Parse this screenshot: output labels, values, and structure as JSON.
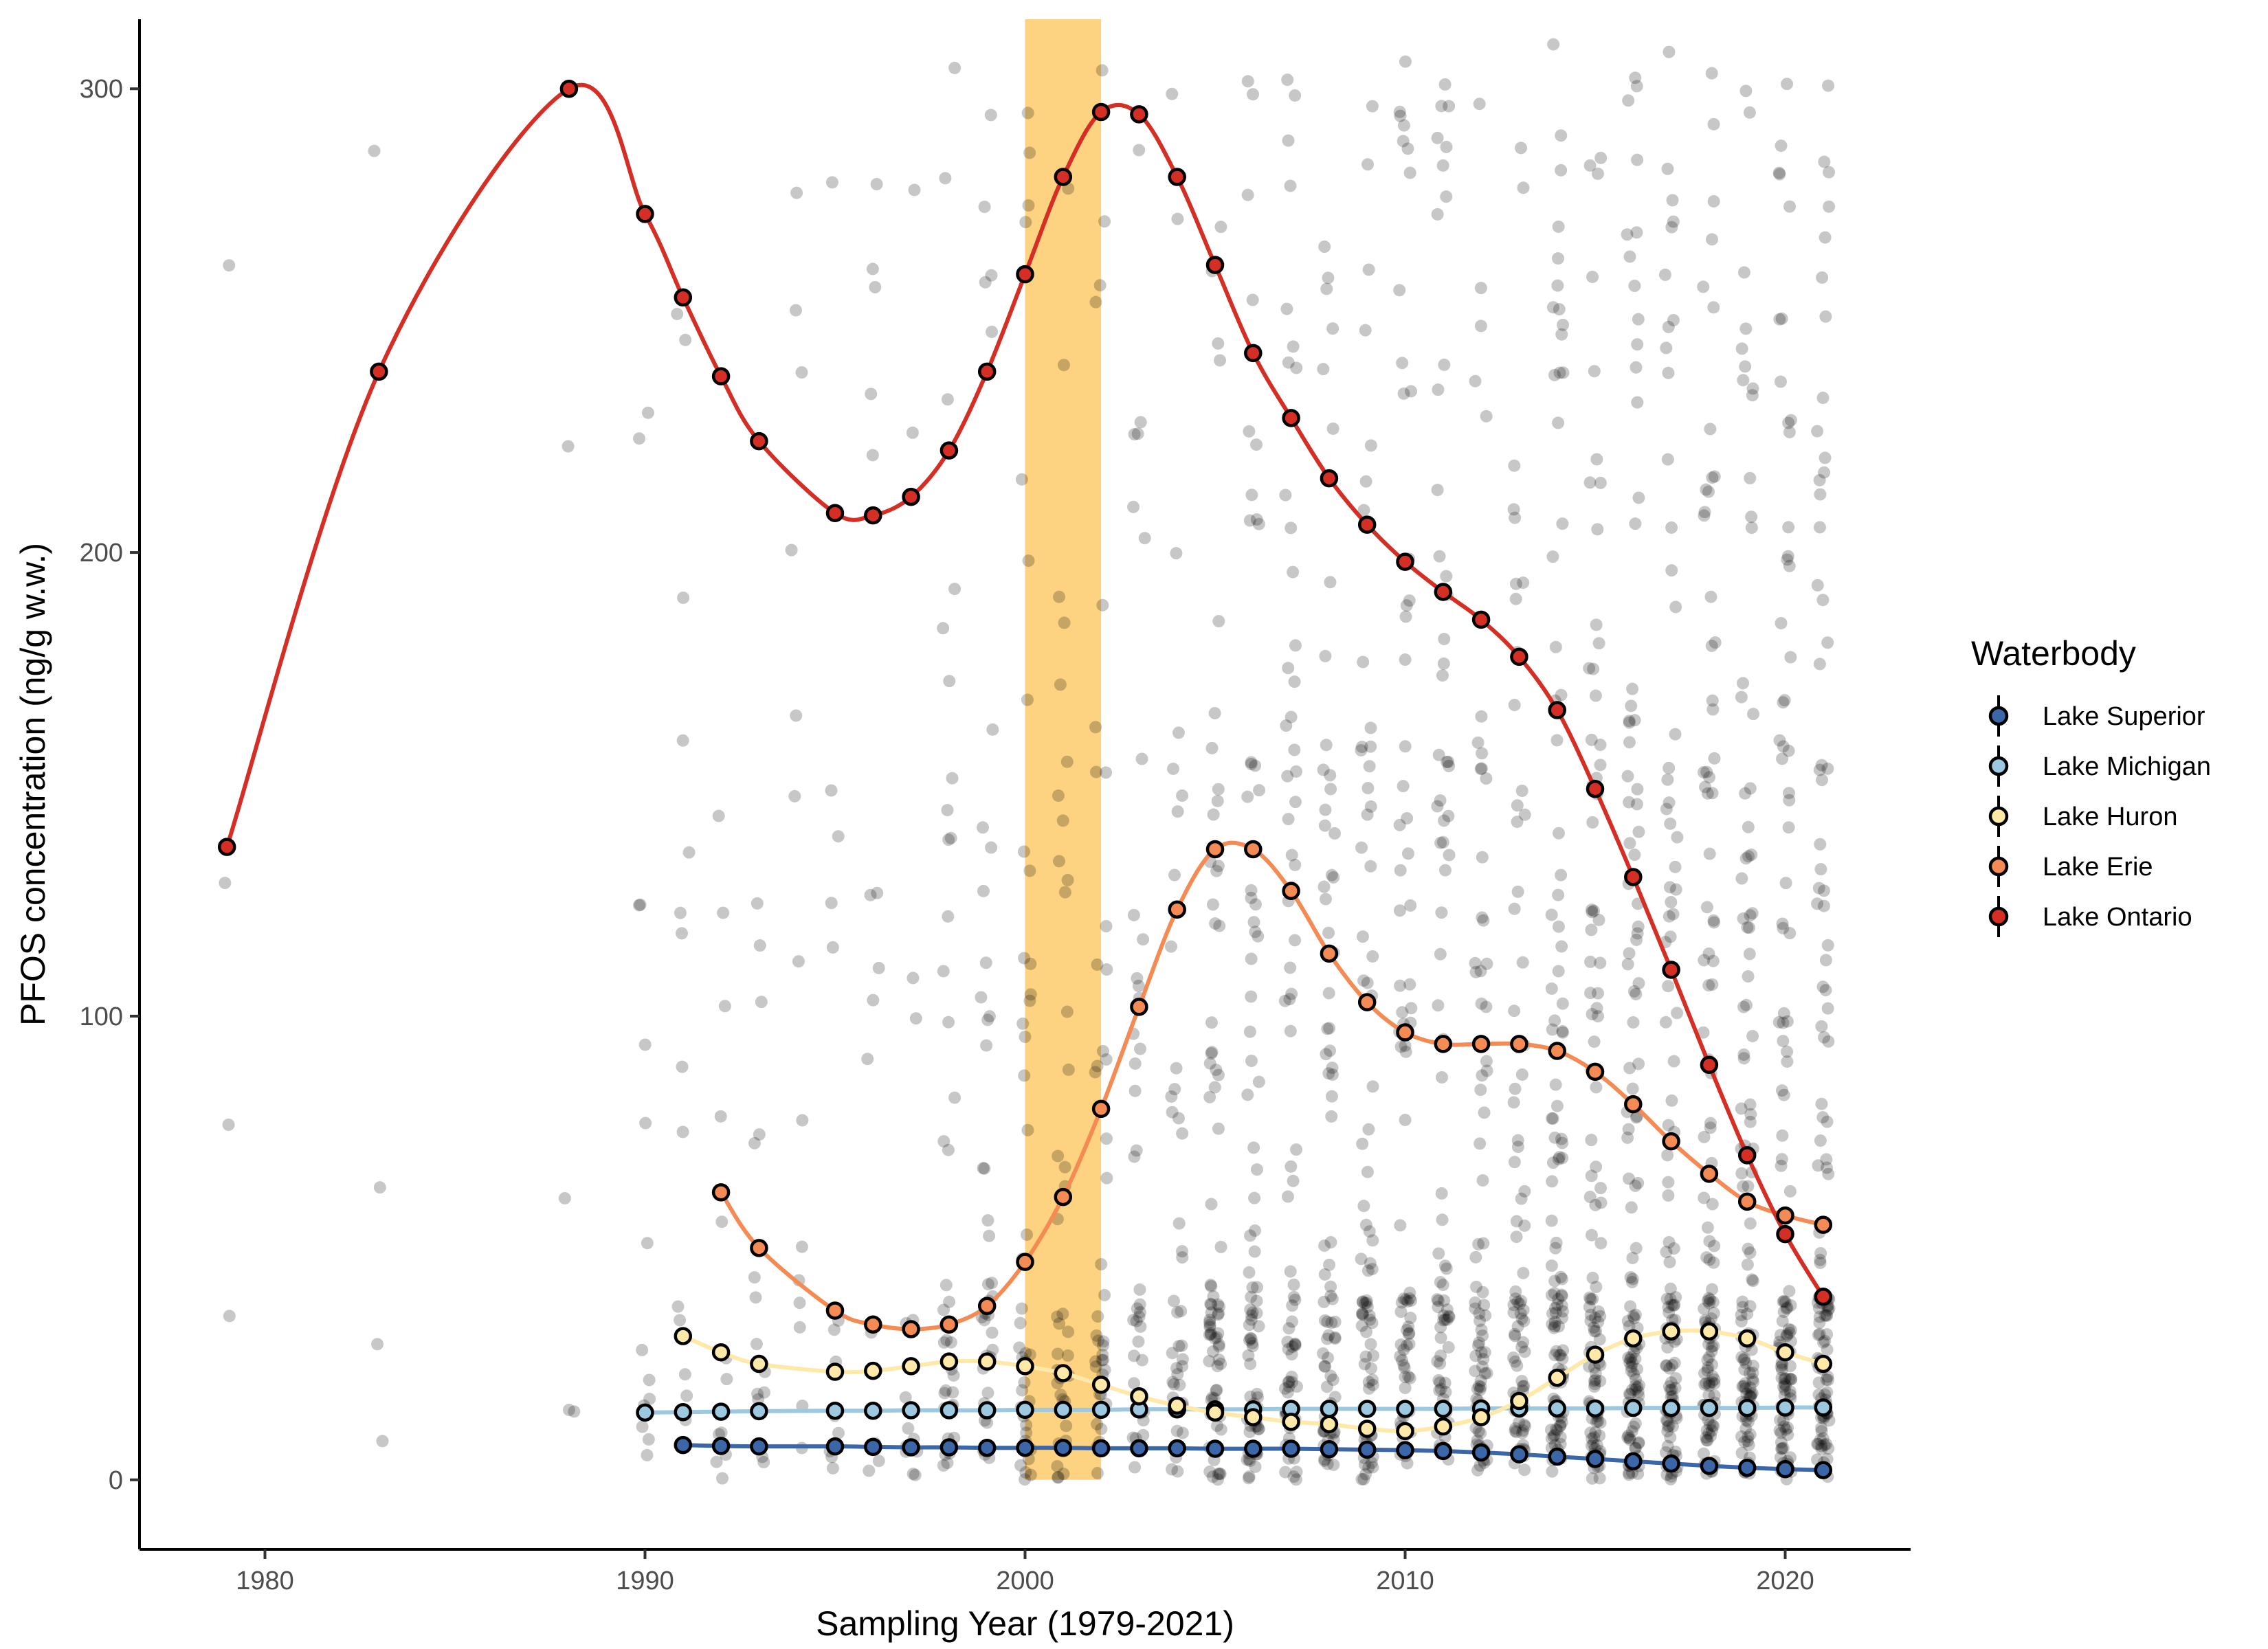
{
  "chart_data": {
    "type": "scatter",
    "title": "",
    "xlabel": "Sampling Year (1979-2021)",
    "ylabel": "PFOS concentration (ng/g w.w.)",
    "xlim": [
      1976.7,
      2023.3
    ],
    "ylim": [
      -15,
      315
    ],
    "x_ticks": [
      1980,
      1990,
      2000,
      2010,
      2020
    ],
    "y_ticks": [
      0,
      100,
      200,
      300
    ],
    "grid": false,
    "legend": {
      "title": "Waterbody",
      "position": "right"
    },
    "highlight_band": {
      "x_range": [
        2000,
        2002
      ],
      "color": "#FDD280"
    },
    "series": [
      {
        "name": "Lake Superior",
        "color": "#3B66A8",
        "points": [
          [
            1991,
            7.5
          ],
          [
            1992,
            7.3
          ],
          [
            1993,
            7.2
          ],
          [
            1995,
            7.2
          ],
          [
            1996,
            7.1
          ],
          [
            1997,
            7.0
          ],
          [
            1998,
            7.0
          ],
          [
            1999,
            6.9
          ],
          [
            2000,
            6.9
          ],
          [
            2001,
            6.9
          ],
          [
            2002,
            6.8
          ],
          [
            2003,
            6.8
          ],
          [
            2004,
            6.8
          ],
          [
            2005,
            6.7
          ],
          [
            2006,
            6.7
          ],
          [
            2007,
            6.7
          ],
          [
            2008,
            6.6
          ],
          [
            2009,
            6.5
          ],
          [
            2010,
            6.4
          ],
          [
            2011,
            6.2
          ],
          [
            2012,
            5.9
          ],
          [
            2013,
            5.5
          ],
          [
            2014,
            5.0
          ],
          [
            2015,
            4.5
          ],
          [
            2016,
            4.0
          ],
          [
            2017,
            3.5
          ],
          [
            2018,
            3.0
          ],
          [
            2019,
            2.6
          ],
          [
            2020,
            2.3
          ],
          [
            2021,
            2.1
          ]
        ]
      },
      {
        "name": "Lake Michigan",
        "color": "#9DC9E0",
        "points": [
          [
            1990,
            14.5
          ],
          [
            1991,
            14.6
          ],
          [
            1992,
            14.7
          ],
          [
            1993,
            14.8
          ],
          [
            1995,
            14.9
          ],
          [
            1996,
            14.9
          ],
          [
            1997,
            15.0
          ],
          [
            1998,
            15.0
          ],
          [
            1999,
            15.0
          ],
          [
            2000,
            15.1
          ],
          [
            2001,
            15.1
          ],
          [
            2002,
            15.1
          ],
          [
            2003,
            15.2
          ],
          [
            2004,
            15.2
          ],
          [
            2005,
            15.2
          ],
          [
            2006,
            15.2
          ],
          [
            2007,
            15.3
          ],
          [
            2008,
            15.3
          ],
          [
            2009,
            15.3
          ],
          [
            2010,
            15.3
          ],
          [
            2011,
            15.3
          ],
          [
            2012,
            15.4
          ],
          [
            2013,
            15.4
          ],
          [
            2014,
            15.4
          ],
          [
            2015,
            15.4
          ],
          [
            2016,
            15.5
          ],
          [
            2017,
            15.5
          ],
          [
            2018,
            15.5
          ],
          [
            2019,
            15.5
          ],
          [
            2020,
            15.6
          ],
          [
            2021,
            15.6
          ]
        ]
      },
      {
        "name": "Lake Huron",
        "color": "#FEE9A8",
        "points": [
          [
            1991,
            31
          ],
          [
            1992,
            27.5
          ],
          [
            1993,
            25
          ],
          [
            1995,
            23.3
          ],
          [
            1996,
            23.5
          ],
          [
            1997,
            24.5
          ],
          [
            1998,
            25.5
          ],
          [
            1999,
            25.5
          ],
          [
            2000,
            24.5
          ],
          [
            2001,
            23
          ],
          [
            2002,
            20.5
          ],
          [
            2003,
            18
          ],
          [
            2004,
            16
          ],
          [
            2005,
            14.5
          ],
          [
            2006,
            13.5
          ],
          [
            2007,
            12.5
          ],
          [
            2008,
            12
          ],
          [
            2009,
            11
          ],
          [
            2010,
            10.5
          ],
          [
            2011,
            11.5
          ],
          [
            2012,
            13.5
          ],
          [
            2013,
            17
          ],
          [
            2014,
            22
          ],
          [
            2015,
            27
          ],
          [
            2016,
            30.5
          ],
          [
            2017,
            32
          ],
          [
            2018,
            32
          ],
          [
            2019,
            30.5
          ],
          [
            2020,
            27.5
          ],
          [
            2021,
            25
          ]
        ]
      },
      {
        "name": "Lake Erie",
        "color": "#F48B55",
        "points": [
          [
            1992,
            62
          ],
          [
            1993,
            50
          ],
          [
            1995,
            36.5
          ],
          [
            1996,
            33.5
          ],
          [
            1997,
            32.5
          ],
          [
            1998,
            33.5
          ],
          [
            1999,
            37.5
          ],
          [
            2000,
            47
          ],
          [
            2001,
            61
          ],
          [
            2002,
            80
          ],
          [
            2003,
            102
          ],
          [
            2004,
            123
          ],
          [
            2005,
            136
          ],
          [
            2006,
            136
          ],
          [
            2007,
            127
          ],
          [
            2008,
            113.5
          ],
          [
            2009,
            103
          ],
          [
            2010,
            96.5
          ],
          [
            2011,
            94
          ],
          [
            2012,
            94
          ],
          [
            2013,
            94
          ],
          [
            2014,
            92.5
          ],
          [
            2015,
            88
          ],
          [
            2016,
            81
          ],
          [
            2017,
            73
          ],
          [
            2018,
            66
          ],
          [
            2019,
            60
          ],
          [
            2020,
            57
          ],
          [
            2021,
            55
          ]
        ]
      },
      {
        "name": "Lake Ontario",
        "color": "#D42E25",
        "points": [
          [
            1979,
            136.5
          ],
          [
            1983,
            239
          ],
          [
            1988,
            300
          ],
          [
            1990,
            273
          ],
          [
            1991,
            255
          ],
          [
            1992,
            238
          ],
          [
            1993,
            224
          ],
          [
            1995,
            208.5
          ],
          [
            1996,
            208
          ],
          [
            1997,
            212
          ],
          [
            1998,
            222
          ],
          [
            1999,
            239
          ],
          [
            2000,
            260
          ],
          [
            2001,
            281
          ],
          [
            2002,
            295
          ],
          [
            2003,
            294.5
          ],
          [
            2004,
            281
          ],
          [
            2005,
            262
          ],
          [
            2006,
            243
          ],
          [
            2007,
            229
          ],
          [
            2008,
            216
          ],
          [
            2009,
            206
          ],
          [
            2010,
            198
          ],
          [
            2011,
            191.5
          ],
          [
            2012,
            185.5
          ],
          [
            2013,
            177.5
          ],
          [
            2014,
            166
          ],
          [
            2015,
            149
          ],
          [
            2016,
            130
          ],
          [
            2017,
            110
          ],
          [
            2018,
            89.5
          ],
          [
            2019,
            70
          ],
          [
            2020,
            53
          ],
          [
            2021,
            39.5
          ]
        ]
      }
    ]
  }
}
